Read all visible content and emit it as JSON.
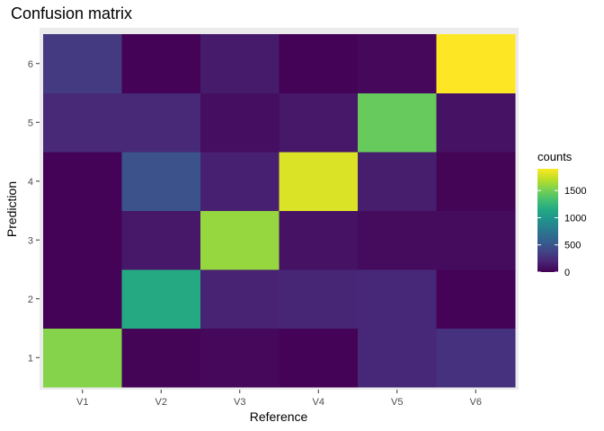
{
  "chart_data": {
    "type": "heatmap",
    "title": "Confusion matrix",
    "xlabel": "Reference",
    "ylabel": "Prediction",
    "x_categories": [
      "V1",
      "V2",
      "V3",
      "V4",
      "V5",
      "V6"
    ],
    "y_categories": [
      "1",
      "2",
      "3",
      "4",
      "5",
      "6"
    ],
    "values": [
      [
        1550,
        20,
        40,
        10,
        210,
        270
      ],
      [
        10,
        1150,
        180,
        200,
        210,
        10
      ],
      [
        10,
        120,
        1600,
        90,
        60,
        60
      ],
      [
        10,
        480,
        170,
        1800,
        150,
        20
      ],
      [
        220,
        220,
        70,
        120,
        1450,
        90
      ],
      [
        320,
        10,
        140,
        10,
        40,
        1900
      ]
    ],
    "legend": {
      "title": "counts",
      "ticks": [
        0,
        500,
        1000,
        1500
      ],
      "range": [
        0,
        1900
      ],
      "colormap": "viridis",
      "placement": "right"
    },
    "grid": true,
    "colors": {
      "panel_background": "#ebebeb",
      "grid": "#ffffff"
    }
  }
}
